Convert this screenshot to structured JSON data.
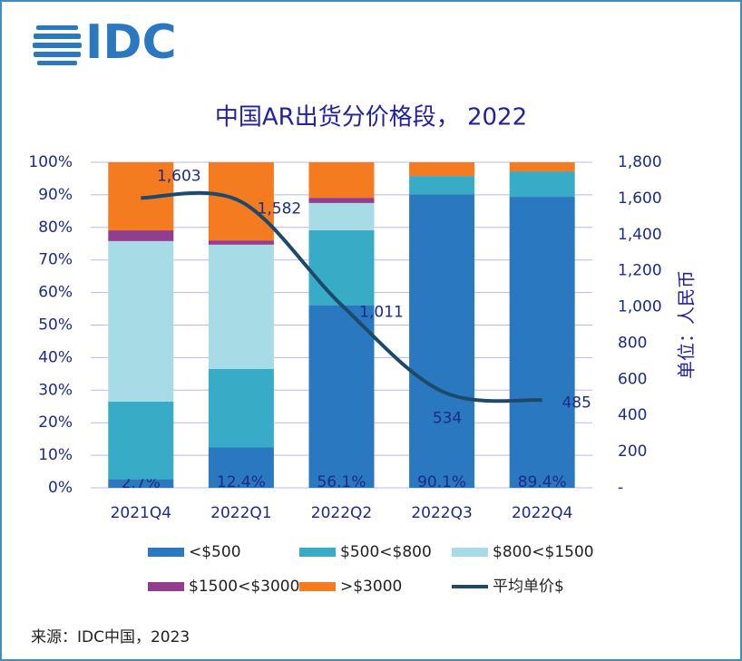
{
  "logo": "IDC",
  "source": "来源：IDC中国，2023",
  "chart_data": {
    "type": "bar",
    "stacked": true,
    "title": "中国AR出货分价格段， 2022",
    "y2label": "单位：人民币",
    "categories": [
      "2021Q4",
      "2022Q1",
      "2022Q2",
      "2022Q3",
      "2022Q4"
    ],
    "series": [
      {
        "name": "<$500",
        "color": "#2a78c0",
        "values": [
          2.7,
          12.4,
          56.1,
          90.1,
          89.4
        ],
        "value_labels": [
          "2.7%",
          "12.4%",
          "56.1%",
          "90.1%",
          "89.4%"
        ]
      },
      {
        "name": "$500<$800",
        "color": "#38abc6",
        "values": [
          23.8,
          24.1,
          23.0,
          5.7,
          7.8
        ]
      },
      {
        "name": "$800<$1500",
        "color": "#a7dbe6",
        "values": [
          49.3,
          38.2,
          8.4,
          0,
          0
        ]
      },
      {
        "name": "$1500<$3000",
        "color": "#933d8f",
        "values": [
          3.3,
          1.3,
          1.6,
          0,
          0
        ]
      },
      {
        "name": ">$3000",
        "color": "#f47b20",
        "values": [
          20.9,
          24.0,
          10.9,
          4.2,
          2.8
        ]
      },
      {
        "name": "平均单价$",
        "color": "#1d4a6b",
        "type": "line",
        "axis": "y2",
        "values": [
          1603,
          1582,
          1011,
          534,
          485
        ],
        "value_labels": [
          "1,603",
          "1,582",
          "1,011",
          "534",
          "485"
        ]
      }
    ],
    "ylim": [
      0,
      100
    ],
    "yticks": [
      {
        "value": 0,
        "label": "0%"
      },
      {
        "value": 10,
        "label": "10%"
      },
      {
        "value": 20,
        "label": "20%"
      },
      {
        "value": 30,
        "label": "30%"
      },
      {
        "value": 40,
        "label": "40%"
      },
      {
        "value": 50,
        "label": "50%"
      },
      {
        "value": 60,
        "label": "60%"
      },
      {
        "value": 70,
        "label": "70%"
      },
      {
        "value": 80,
        "label": "80%"
      },
      {
        "value": 90,
        "label": "90%"
      },
      {
        "value": 100,
        "label": "100%"
      }
    ],
    "y2lim": [
      0,
      1800
    ],
    "y2ticks": [
      {
        "value": 0,
        "label": "-"
      },
      200,
      400,
      600,
      800,
      {
        "value": 1000,
        "label": "1,000"
      },
      {
        "value": 1200,
        "label": "1,200"
      },
      {
        "value": 1400,
        "label": "1,400"
      },
      {
        "value": 1600,
        "label": "1,600"
      },
      {
        "value": 1800,
        "label": "1,800"
      }
    ],
    "grid": true
  }
}
